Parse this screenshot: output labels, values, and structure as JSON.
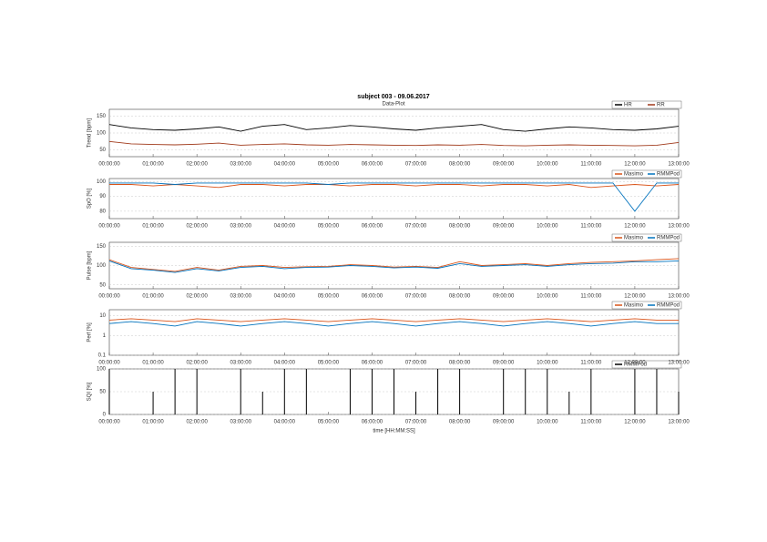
{
  "title": "subject 003 - 09.06.2017",
  "subtitle": "Data-Plot",
  "chart_data": [
    {
      "type": "line",
      "ylabel": "Trend [bpm]",
      "xlim": [
        0,
        13
      ],
      "ylim": [
        30,
        170
      ],
      "yticks": [
        50,
        100,
        150
      ],
      "grid": true,
      "xticks": [
        {
          "value": 0,
          "label": "00:00:00"
        },
        {
          "value": 1,
          "label": "01:00:00"
        },
        {
          "value": 2,
          "label": "02:00:00"
        },
        {
          "value": 3,
          "label": "03:00:00"
        },
        {
          "value": 4,
          "label": "04:00:00"
        },
        {
          "value": 5,
          "label": "05:00:00"
        },
        {
          "value": 6,
          "label": "06:00:00"
        },
        {
          "value": 7,
          "label": "07:00:00"
        },
        {
          "value": 8,
          "label": "08:00:00"
        },
        {
          "value": 9,
          "label": "09:00:00"
        },
        {
          "value": 10,
          "label": "10:00:00"
        },
        {
          "value": 11,
          "label": "11:00:00"
        },
        {
          "value": 12,
          "label": "12:00:00"
        },
        {
          "value": 13,
          "label": "13:00:00"
        }
      ],
      "x": [
        0,
        0.5,
        1,
        1.5,
        2,
        2.5,
        3,
        3.5,
        4,
        4.5,
        5,
        5.5,
        6,
        6.5,
        7,
        7.5,
        8,
        8.5,
        9,
        9.5,
        10,
        10.5,
        11,
        11.5,
        12,
        12.5,
        13
      ],
      "series": [
        {
          "name": "HR",
          "color": "#000000",
          "values": [
            125,
            115,
            110,
            108,
            112,
            118,
            105,
            120,
            125,
            110,
            115,
            122,
            118,
            112,
            108,
            115,
            120,
            125,
            110,
            105,
            112,
            118,
            115,
            110,
            108,
            112,
            120
          ]
        },
        {
          "name": "RR",
          "color": "#a0391a",
          "values": [
            75,
            68,
            66,
            65,
            67,
            70,
            64,
            66,
            68,
            65,
            64,
            66,
            65,
            64,
            63,
            65,
            64,
            66,
            63,
            62,
            64,
            65,
            64,
            63,
            62,
            64,
            72
          ]
        }
      ]
    },
    {
      "type": "line",
      "ylabel": "SpO [%]",
      "xlim": [
        0,
        13
      ],
      "ylim": [
        75,
        102
      ],
      "yticks": [
        80,
        90,
        100
      ],
      "grid": true,
      "xticks": [
        {
          "value": 0,
          "label": "00:00:00"
        },
        {
          "value": 1,
          "label": "01:00:00"
        },
        {
          "value": 2,
          "label": "02:00:00"
        },
        {
          "value": 3,
          "label": "03:00:00"
        },
        {
          "value": 4,
          "label": "04:00:00"
        },
        {
          "value": 5,
          "label": "05:00:00"
        },
        {
          "value": 6,
          "label": "06:00:00"
        },
        {
          "value": 7,
          "label": "07:00:00"
        },
        {
          "value": 8,
          "label": "08:00:00"
        },
        {
          "value": 9,
          "label": "09:00:00"
        },
        {
          "value": 10,
          "label": "10:00:00"
        },
        {
          "value": 11,
          "label": "11:00:00"
        },
        {
          "value": 12,
          "label": "12:00:00"
        },
        {
          "value": 13,
          "label": "13:00:00"
        }
      ],
      "x": [
        0,
        0.5,
        1,
        1.5,
        2,
        2.5,
        3,
        3.5,
        4,
        4.5,
        5,
        5.5,
        6,
        6.5,
        7,
        7.5,
        8,
        8.5,
        9,
        9.5,
        10,
        10.5,
        11,
        11.5,
        12,
        12.5,
        13
      ],
      "series": [
        {
          "name": "Masimo",
          "color": "#d95319",
          "values": [
            98,
            98,
            97,
            98,
            97,
            96,
            98,
            98,
            97,
            98,
            98,
            97,
            98,
            98,
            97,
            98,
            98,
            97,
            98,
            98,
            97,
            98,
            96,
            97,
            98,
            97,
            98
          ]
        },
        {
          "name": "RMMPod",
          "color": "#0072bd",
          "values": [
            99,
            99,
            99,
            98,
            99,
            99,
            99,
            99,
            99,
            99,
            98,
            99,
            99,
            99,
            99,
            99,
            99,
            99,
            99,
            99,
            99,
            99,
            99,
            99,
            80,
            99,
            99
          ]
        }
      ]
    },
    {
      "type": "line",
      "ylabel": "Pulse [bpm]",
      "xlim": [
        0,
        13
      ],
      "ylim": [
        40,
        160
      ],
      "yticks": [
        50,
        100,
        150
      ],
      "grid": true,
      "xticks": [
        {
          "value": 0,
          "label": "00:00:00"
        },
        {
          "value": 1,
          "label": "01:00:00"
        },
        {
          "value": 2,
          "label": "02:00:00"
        },
        {
          "value": 3,
          "label": "03:00:00"
        },
        {
          "value": 4,
          "label": "04:00:00"
        },
        {
          "value": 5,
          "label": "05:00:00"
        },
        {
          "value": 6,
          "label": "06:00:00"
        },
        {
          "value": 7,
          "label": "07:00:00"
        },
        {
          "value": 8,
          "label": "08:00:00"
        },
        {
          "value": 9,
          "label": "09:00:00"
        },
        {
          "value": 10,
          "label": "10:00:00"
        },
        {
          "value": 11,
          "label": "11:00:00"
        },
        {
          "value": 12,
          "label": "12:00:00"
        },
        {
          "value": 13,
          "label": "13:00:00"
        }
      ],
      "x": [
        0,
        0.5,
        1,
        1.5,
        2,
        2.5,
        3,
        3.5,
        4,
        4.5,
        5,
        5.5,
        6,
        6.5,
        7,
        7.5,
        8,
        8.5,
        9,
        9.5,
        10,
        10.5,
        11,
        11.5,
        12,
        12.5,
        13
      ],
      "series": [
        {
          "name": "Masimo",
          "color": "#d95319",
          "values": [
            115,
            95,
            90,
            85,
            95,
            88,
            98,
            100,
            95,
            97,
            98,
            102,
            100,
            96,
            98,
            95,
            110,
            100,
            102,
            105,
            100,
            105,
            108,
            110,
            112,
            115,
            118
          ]
        },
        {
          "name": "RMMPod",
          "color": "#0072bd",
          "values": [
            112,
            92,
            88,
            82,
            92,
            86,
            95,
            98,
            92,
            95,
            96,
            100,
            98,
            94,
            96,
            93,
            105,
            98,
            100,
            102,
            98,
            102,
            105,
            106,
            110,
            110,
            112
          ]
        }
      ]
    },
    {
      "type": "line",
      "ylabel": "Perf [%]",
      "xlim": [
        0,
        13
      ],
      "ylim": [
        0.1,
        20
      ],
      "yticks": [
        0.1,
        1,
        10
      ],
      "log": true,
      "grid": true,
      "xticks": [
        {
          "value": 0,
          "label": "00:00:00"
        },
        {
          "value": 1,
          "label": "01:00:00"
        },
        {
          "value": 2,
          "label": "02:00:00"
        },
        {
          "value": 3,
          "label": "03:00:00"
        },
        {
          "value": 4,
          "label": "04:00:00"
        },
        {
          "value": 5,
          "label": "05:00:00"
        },
        {
          "value": 6,
          "label": "06:00:00"
        },
        {
          "value": 7,
          "label": "07:00:00"
        },
        {
          "value": 8,
          "label": "08:00:00"
        },
        {
          "value": 9,
          "label": "09:00:00"
        },
        {
          "value": 10,
          "label": "10:00:00"
        },
        {
          "value": 11,
          "label": "11:00:00"
        },
        {
          "value": 12,
          "label": "12:00:00"
        },
        {
          "value": 13,
          "label": "13:00:00"
        }
      ],
      "x": [
        0,
        0.5,
        1,
        1.5,
        2,
        2.5,
        3,
        3.5,
        4,
        4.5,
        5,
        5.5,
        6,
        6.5,
        7,
        7.5,
        8,
        8.5,
        9,
        9.5,
        10,
        10.5,
        11,
        11.5,
        12,
        12.5,
        13
      ],
      "series": [
        {
          "name": "Masimo",
          "color": "#d95319",
          "values": [
            6,
            7,
            6,
            5,
            7,
            6,
            5,
            6,
            7,
            6,
            5,
            6,
            7,
            6,
            5,
            6,
            7,
            6,
            5,
            6,
            7,
            6,
            5,
            6,
            7,
            6,
            6
          ]
        },
        {
          "name": "RMMPod",
          "color": "#0072bd",
          "values": [
            4,
            5,
            4,
            3,
            5,
            4,
            3,
            4,
            5,
            4,
            3,
            4,
            5,
            4,
            3,
            4,
            5,
            4,
            3,
            4,
            5,
            4,
            3,
            4,
            5,
            4,
            4
          ]
        }
      ]
    },
    {
      "type": "bar",
      "ylabel": "SQI [%]",
      "xlabel": "time [HH:MM:SS]",
      "xlim": [
        0,
        13
      ],
      "ylim": [
        0,
        100
      ],
      "yticks": [
        0,
        50,
        100
      ],
      "grid": true,
      "xticks": [
        {
          "value": 0,
          "label": "00:00:00"
        },
        {
          "value": 1,
          "label": "01:00:00"
        },
        {
          "value": 2,
          "label": "02:00:00"
        },
        {
          "value": 3,
          "label": "03:00:00"
        },
        {
          "value": 4,
          "label": "04:00:00"
        },
        {
          "value": 5,
          "label": "05:00:00"
        },
        {
          "value": 6,
          "label": "06:00:00"
        },
        {
          "value": 7,
          "label": "07:00:00"
        },
        {
          "value": 8,
          "label": "08:00:00"
        },
        {
          "value": 9,
          "label": "09:00:00"
        },
        {
          "value": 10,
          "label": "10:00:00"
        },
        {
          "value": 11,
          "label": "11:00:00"
        },
        {
          "value": 12,
          "label": "12:00:00"
        },
        {
          "value": 13,
          "label": "13:00:00"
        }
      ],
      "x": [
        0,
        0.5,
        1,
        1.5,
        2,
        2.5,
        3,
        3.5,
        4,
        4.5,
        5,
        5.5,
        6,
        6.5,
        7,
        7.5,
        8,
        8.5,
        9,
        9.5,
        10,
        10.5,
        11,
        11.5,
        12,
        12.5,
        13
      ],
      "series": [
        {
          "name": "RMMPod",
          "color": "#000000",
          "values": [
            100,
            0,
            50,
            100,
            100,
            0,
            100,
            50,
            100,
            100,
            0,
            100,
            100,
            100,
            50,
            100,
            100,
            0,
            100,
            100,
            100,
            50,
            100,
            0,
            100,
            100,
            50
          ]
        }
      ]
    }
  ]
}
